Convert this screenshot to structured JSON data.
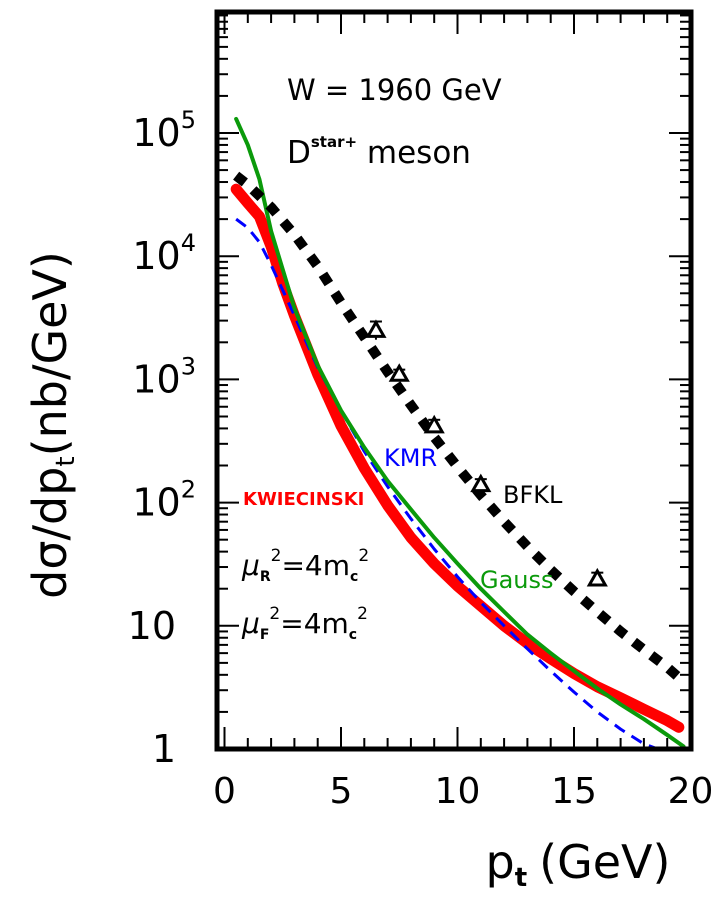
{
  "chart_data": {
    "type": "line",
    "xlabel_main": "p",
    "xlabel_sub": "t",
    "xlabel_unit": "(GeV)",
    "ylabel_main": "dσ/dp",
    "ylabel_sub": "t",
    "ylabel_unit": "(nb/GeV)",
    "xlim": [
      0,
      20
    ],
    "ylim": [
      1,
      1000000
    ],
    "y_scale": "log",
    "x_ticks": [
      0,
      5,
      10,
      15,
      20
    ],
    "y_ticks": [
      {
        "value": 1,
        "base": "1",
        "exp": ""
      },
      {
        "value": 10,
        "base": "10",
        "exp": ""
      },
      {
        "value": 100,
        "base": "10",
        "exp": "2"
      },
      {
        "value": 1000,
        "base": "10",
        "exp": "3"
      },
      {
        "value": 10000,
        "base": "10",
        "exp": "4"
      },
      {
        "value": 100000,
        "base": "10",
        "exp": "5"
      }
    ],
    "annotations": {
      "energy": "W = 1960 GeV",
      "particle_main": "D",
      "particle_sup": "star+",
      "particle_suffix": " meson",
      "mu_r_sym": "μ",
      "mu_r_sub": "R",
      "mu_r_rhs": "=4m",
      "mu_r_rhs_sub": "c",
      "mu_f_sym": "μ",
      "mu_f_sub": "F",
      "mu_f_rhs": "=4m",
      "mu_f_rhs_sub": "c",
      "sq": "2"
    },
    "series": [
      {
        "name": "KWIECINSKI",
        "color": "#ff0000",
        "style": "solid-thick",
        "x": [
          0.5,
          1,
          1.5,
          2,
          2.5,
          3,
          4,
          5,
          6,
          7,
          8,
          9,
          10,
          11,
          12,
          13,
          14,
          15,
          16,
          17,
          18,
          19,
          19.5
        ],
        "y": [
          35000,
          27000,
          21000,
          12000,
          6000,
          3300,
          1100,
          420,
          190,
          95,
          52,
          32,
          21,
          14.5,
          10,
          7.2,
          5.4,
          4.1,
          3.2,
          2.6,
          2.1,
          1.7,
          1.5
        ]
      },
      {
        "name": "KMR",
        "color": "#0000ff",
        "style": "dashed",
        "x": [
          0.5,
          1,
          1.5,
          2,
          3,
          4,
          5,
          6,
          7,
          8,
          9,
          10,
          11,
          12,
          13,
          14,
          15,
          16,
          17,
          18,
          18.6
        ],
        "y": [
          20000,
          17000,
          13000,
          8500,
          3300,
          1250,
          560,
          260,
          135,
          74,
          42,
          25,
          15.5,
          10,
          6.5,
          4.3,
          2.9,
          2,
          1.45,
          1.1,
          1
        ]
      },
      {
        "name": "Gauss",
        "color": "#0b9a0b",
        "style": "solid",
        "x": [
          0.5,
          1,
          1.5,
          2,
          3,
          4,
          5,
          6,
          7,
          8,
          9,
          10,
          11,
          12,
          13,
          14,
          15,
          16,
          17,
          18,
          19,
          19.7
        ],
        "y": [
          130000,
          80000,
          42000,
          16000,
          3800,
          1300,
          560,
          280,
          150,
          88,
          52,
          32,
          20,
          13,
          8.5,
          6,
          4.3,
          3.1,
          2.3,
          1.75,
          1.3,
          1.05
        ]
      },
      {
        "name": "BFKL",
        "color": "#000000",
        "style": "dotted-thick",
        "x": [
          0.5,
          1,
          2,
          3,
          4,
          5,
          6,
          7,
          8,
          9,
          10,
          11,
          12,
          13,
          14,
          15,
          16,
          17,
          18,
          19,
          19.5
        ],
        "y": [
          45000,
          38000,
          25000,
          15000,
          8300,
          4200,
          2200,
          1150,
          620,
          340,
          195,
          115,
          70,
          44,
          28.5,
          19,
          13,
          9,
          6.4,
          4.6,
          3.8
        ]
      }
    ],
    "data_points": {
      "marker": "open-triangle",
      "x": [
        6.5,
        7.5,
        9,
        11,
        16
      ],
      "y": [
        2500,
        1100,
        420,
        140,
        24
      ],
      "y_err_low": [
        2100,
        980,
        370,
        125,
        21
      ],
      "y_err_high": [
        2950,
        1200,
        470,
        155,
        27
      ]
    }
  }
}
